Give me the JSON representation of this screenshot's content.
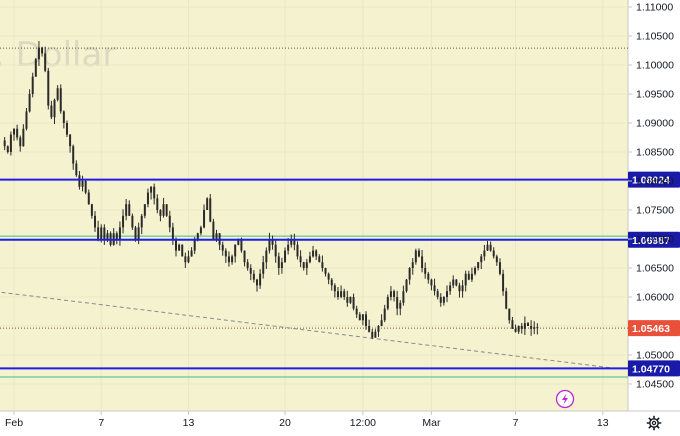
{
  "chart_data": {
    "type": "candlestick",
    "watermark": ". Dollar",
    "y_axis": {
      "ylim": [
        1.0425,
        1.1125
      ],
      "ticks": [
        "1.11000",
        "1.10500",
        "1.10000",
        "1.09500",
        "1.09000",
        "1.08500",
        "1.08000",
        "1.07500",
        "1.07000",
        "1.06500",
        "1.06000",
        "1.05500",
        "1.05000",
        "1.04500"
      ],
      "tick_values": [
        1.11,
        1.105,
        1.1,
        1.095,
        1.09,
        1.085,
        1.08,
        1.075,
        1.07,
        1.065,
        1.06,
        1.055,
        1.05,
        1.045
      ]
    },
    "x_axis": {
      "ticks": [
        "Feb",
        "7",
        "13",
        "20",
        "12:00",
        "Mar",
        "7",
        "13"
      ],
      "tick_index": [
        4,
        32,
        60,
        91,
        116,
        138,
        165,
        193
      ],
      "bar_count": 200
    },
    "levels": [
      {
        "value": 1.08024,
        "label": "1.08024",
        "color": "#1e1ee6"
      },
      {
        "value": 1.06987,
        "label": "1.06987",
        "color": "#1e1ee6"
      },
      {
        "value": 1.0477,
        "label": "1.04770",
        "color": "#1e1ee6"
      }
    ],
    "dotted_levels": [
      1.1029,
      1.05463
    ],
    "green_lines": [
      1.0705,
      1.0462
    ],
    "trendline": {
      "from": [
        0,
        1.0608
      ],
      "to": [
        197,
        1.0477
      ]
    },
    "current_price": {
      "value": 1.05463,
      "label": "1.05463",
      "color": "#e8503a"
    },
    "closes": [
      1.087,
      1.086,
      1.085,
      1.088,
      1.089,
      1.0875,
      1.086,
      1.089,
      1.092,
      1.095,
      1.098,
      1.101,
      1.103,
      1.102,
      1.099,
      1.093,
      1.091,
      1.094,
      1.096,
      1.092,
      1.09,
      1.088,
      1.086,
      1.083,
      1.081,
      1.079,
      1.08,
      1.078,
      1.076,
      1.074,
      1.072,
      1.07,
      1.072,
      1.07,
      1.071,
      1.069,
      1.071,
      1.07,
      1.072,
      1.074,
      1.076,
      1.074,
      1.072,
      1.07,
      1.072,
      1.074,
      1.076,
      1.078,
      1.079,
      1.077,
      1.075,
      1.074,
      1.076,
      1.074,
      1.072,
      1.07,
      1.068,
      1.069,
      1.067,
      1.066,
      1.067,
      1.068,
      1.07,
      1.071,
      1.072,
      1.075,
      1.077,
      1.073,
      1.07,
      1.071,
      1.069,
      1.068,
      1.067,
      1.066,
      1.067,
      1.069,
      1.07,
      1.068,
      1.066,
      1.065,
      1.064,
      1.063,
      1.062,
      1.064,
      1.066,
      1.068,
      1.07,
      1.069,
      1.067,
      1.065,
      1.066,
      1.068,
      1.069,
      1.07,
      1.069,
      1.067,
      1.066,
      1.065,
      1.066,
      1.067,
      1.068,
      1.067,
      1.066,
      1.065,
      1.064,
      1.063,
      1.062,
      1.061,
      1.06,
      1.061,
      1.06,
      1.059,
      1.06,
      1.058,
      1.057,
      1.056,
      1.057,
      1.055,
      1.054,
      1.053,
      1.054,
      1.055,
      1.056,
      1.058,
      1.06,
      1.061,
      1.06,
      1.058,
      1.059,
      1.061,
      1.063,
      1.065,
      1.066,
      1.068,
      1.067,
      1.065,
      1.064,
      1.063,
      1.062,
      1.061,
      1.06,
      1.059,
      1.06,
      1.061,
      1.062,
      1.063,
      1.062,
      1.061,
      1.062,
      1.064,
      1.063,
      1.064,
      1.065,
      1.066,
      1.067,
      1.068,
      1.069,
      1.068,
      1.067,
      1.066,
      1.064,
      1.061,
      1.058,
      1.056,
      1.0545,
      1.054,
      1.055,
      1.0545,
      1.0555,
      1.055,
      1.0545,
      1.0548,
      1.05463
    ],
    "overlay_icon": "lightning-icon",
    "settings_icon": "gear-icon",
    "colors": {
      "up": "#2a2a2a",
      "down": "#2a2a2a",
      "background": "#f4f2cf",
      "axis_background": "#ffffff"
    }
  }
}
